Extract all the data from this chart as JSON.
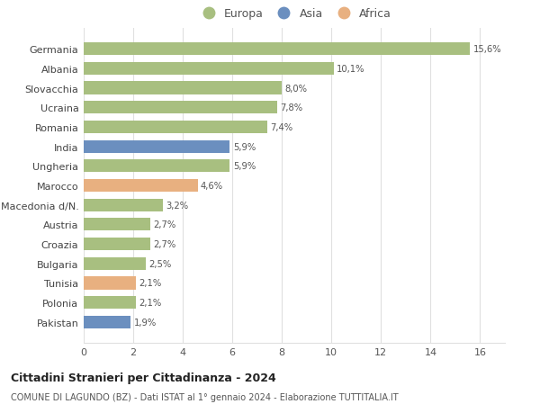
{
  "categories": [
    "Germania",
    "Albania",
    "Slovacchia",
    "Ucraina",
    "Romania",
    "India",
    "Ungheria",
    "Marocco",
    "Macedonia d/N.",
    "Austria",
    "Croazia",
    "Bulgaria",
    "Tunisia",
    "Polonia",
    "Pakistan"
  ],
  "values": [
    15.6,
    10.1,
    8.0,
    7.8,
    7.4,
    5.9,
    5.9,
    4.6,
    3.2,
    2.7,
    2.7,
    2.5,
    2.1,
    2.1,
    1.9
  ],
  "labels": [
    "15,6%",
    "10,1%",
    "8,0%",
    "7,8%",
    "7,4%",
    "5,9%",
    "5,9%",
    "4,6%",
    "3,2%",
    "2,7%",
    "2,7%",
    "2,5%",
    "2,1%",
    "2,1%",
    "1,9%"
  ],
  "continents": [
    "Europa",
    "Europa",
    "Europa",
    "Europa",
    "Europa",
    "Asia",
    "Europa",
    "Africa",
    "Europa",
    "Europa",
    "Europa",
    "Europa",
    "Africa",
    "Europa",
    "Asia"
  ],
  "colors": {
    "Europa": "#a8bf80",
    "Asia": "#6b8fbf",
    "Africa": "#e8b080"
  },
  "legend": [
    "Europa",
    "Asia",
    "Africa"
  ],
  "legend_colors": [
    "#a8bf80",
    "#6b8fbf",
    "#e8b080"
  ],
  "title1": "Cittadini Stranieri per Cittadinanza - 2024",
  "title2": "COMUNE DI LAGUNDO (BZ) - Dati ISTAT al 1° gennaio 2024 - Elaborazione TUTTITALIA.IT",
  "xlim": [
    0,
    17
  ],
  "xticks": [
    0,
    2,
    4,
    6,
    8,
    10,
    12,
    14,
    16
  ],
  "background_color": "#ffffff",
  "grid_color": "#e0e0e0"
}
